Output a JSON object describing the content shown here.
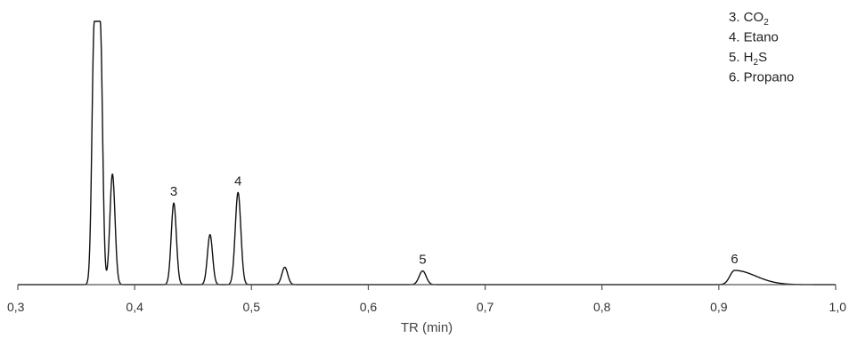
{
  "chart_data": {
    "type": "line",
    "title": "",
    "xlabel": "TR (min)",
    "ylabel": "",
    "xlim": [
      0.3,
      1.0
    ],
    "ylim": [
      0,
      1.0
    ],
    "grid": false,
    "x_ticks": [
      "0,3",
      "0,4",
      "0,5",
      "0,6",
      "0,7",
      "0,8",
      "0,9",
      "1,0"
    ],
    "x_tick_values": [
      0.3,
      0.4,
      0.5,
      0.6,
      0.7,
      0.8,
      0.9,
      1.0
    ],
    "peaks": [
      {
        "label": "",
        "x": 0.368,
        "height": 1.0,
        "width": 0.002,
        "flat_top": true
      },
      {
        "label": "",
        "x": 0.381,
        "height": 0.42,
        "width": 0.0022
      },
      {
        "label": "3",
        "x": 0.4335,
        "height": 0.31,
        "width": 0.0022
      },
      {
        "label": "",
        "x": 0.4645,
        "height": 0.19,
        "width": 0.0022
      },
      {
        "label": "4",
        "x": 0.4885,
        "height": 0.35,
        "width": 0.0024
      },
      {
        "label": "",
        "x": 0.5285,
        "height": 0.066,
        "width": 0.0025
      },
      {
        "label": "5",
        "x": 0.6465,
        "height": 0.052,
        "width": 0.003
      },
      {
        "label": "6",
        "x": 0.9135,
        "height": 0.054,
        "width": 0.004,
        "tail": 0.018
      }
    ],
    "legend": [
      {
        "prefix": "3. CO",
        "sub": "2",
        "suffix": ""
      },
      {
        "prefix": "4. Etano",
        "sub": "",
        "suffix": ""
      },
      {
        "prefix": "5. H",
        "sub": "2",
        "suffix": "S"
      },
      {
        "prefix": "6. Propano",
        "sub": "",
        "suffix": ""
      }
    ],
    "legend_position": "top-right",
    "line_color": "#111111"
  }
}
